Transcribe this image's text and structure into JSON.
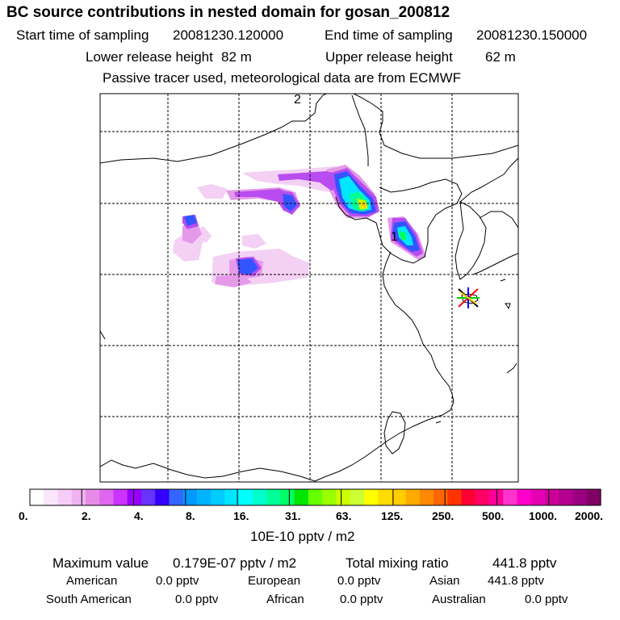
{
  "header": {
    "title": "BC  source contributions in nested domain for gosan_200812",
    "start_label": "Start time of sampling",
    "start_value": "20081230.120000",
    "end_label": "End time of sampling",
    "end_value": "20081230.150000",
    "lower_label": "Lower release height",
    "lower_value": "82 m",
    "upper_label": "Upper release height",
    "upper_value": "62 m",
    "note": "Passive tracer used, meteorological data are from ECMWF"
  },
  "map": {
    "markers": [
      "2",
      "1"
    ],
    "receptor": "gosan-star"
  },
  "colorbar": {
    "ticks": [
      "0.",
      "2.",
      "4.",
      "8.",
      "16.",
      "31.",
      "63.",
      "125.",
      "250.",
      "500.",
      "1000.",
      "2000."
    ],
    "unit": "10E-10 pptv / m2",
    "colors": [
      "#ffffff",
      "#fbe6fb",
      "#f6cdf6",
      "#f0b3f0",
      "#e88ae8",
      "#e066ef",
      "#cc33ff",
      "#9900ff",
      "#6633ff",
      "#3300ff",
      "#3366ff",
      "#0099ff",
      "#00b3ff",
      "#00ccff",
      "#00e6ff",
      "#00ffff",
      "#00ffcc",
      "#00ff99",
      "#00ff66",
      "#00e600",
      "#66ff00",
      "#99ff00",
      "#ccff00",
      "#ccff33",
      "#ffff00",
      "#ffdd00",
      "#ffcc00",
      "#ffaa00",
      "#ff8800",
      "#ff6600",
      "#ff3300",
      "#ff0033",
      "#ff0066",
      "#ff0099",
      "#ff33cc",
      "#ff00cc",
      "#e600b3",
      "#cc0099",
      "#b3008f",
      "#990080",
      "#800066"
    ]
  },
  "stats": {
    "max_label": "Maximum value",
    "max_value": "0.179E-07 pptv / m2",
    "total_label": "Total mixing ratio",
    "total_value": "441.8 pptv",
    "regions": [
      {
        "name": "American",
        "value": "0.0 pptv"
      },
      {
        "name": "European",
        "value": "0.0 pptv"
      },
      {
        "name": "Asian",
        "value": "441.8 pptv"
      },
      {
        "name": "South American",
        "value": "0.0 pptv"
      },
      {
        "name": "African",
        "value": "0.0 pptv"
      },
      {
        "name": "Australian",
        "value": "0.0 pptv"
      }
    ]
  }
}
